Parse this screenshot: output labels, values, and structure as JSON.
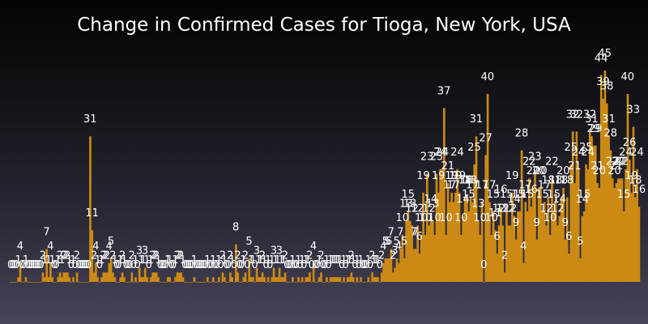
{
  "chart_data": {
    "type": "bar",
    "title": "Change in Confirmed Cases for Tioga, New York, USA",
    "xlabel": "",
    "ylabel": "",
    "ylim": [
      -1,
      45
    ],
    "grid": false,
    "legend": "none",
    "bar_color": "#cc8a14",
    "label_color": "#ffffff",
    "values": [
      0,
      0,
      0,
      0,
      1,
      4,
      0,
      0,
      1,
      0,
      0,
      0,
      0,
      0,
      0,
      0,
      0,
      2,
      1,
      7,
      1,
      4,
      1,
      0,
      0,
      1,
      2,
      1,
      2,
      2,
      2,
      1,
      0,
      1,
      0,
      2,
      0,
      0,
      0,
      0,
      0,
      0,
      31,
      11,
      2,
      4,
      1,
      0,
      1,
      2,
      2,
      2,
      4,
      5,
      2,
      1,
      0,
      0,
      1,
      2,
      1,
      0,
      0,
      0,
      2,
      0,
      1,
      0,
      3,
      1,
      1,
      3,
      1,
      0,
      1,
      2,
      2,
      2,
      1,
      0,
      0,
      0,
      0,
      1,
      1,
      0,
      0,
      1,
      2,
      2,
      2,
      1,
      0,
      0,
      0,
      0,
      0,
      1,
      0,
      0,
      0,
      0,
      0,
      0,
      1,
      0,
      0,
      1,
      0,
      0,
      1,
      0,
      2,
      1,
      0,
      0,
      2,
      1,
      0,
      8,
      2,
      0,
      0,
      1,
      2,
      0,
      5,
      1,
      1,
      0,
      3,
      1,
      1,
      2,
      1,
      0,
      1,
      0,
      1,
      3,
      1,
      1,
      3,
      1,
      1,
      2,
      0,
      0,
      0,
      1,
      0,
      0,
      1,
      0,
      1,
      0,
      1,
      1,
      2,
      0,
      4,
      0,
      0,
      1,
      2,
      0,
      0,
      1,
      0,
      1,
      1,
      1,
      1,
      1,
      1,
      0,
      1,
      0,
      1,
      1,
      2,
      1,
      0,
      1,
      0,
      1,
      0,
      0,
      0,
      1,
      0,
      2,
      1,
      1,
      1,
      0,
      2,
      4,
      5,
      5,
      5,
      7,
      2,
      3,
      5,
      4,
      7,
      10,
      5,
      13,
      15,
      13,
      12,
      7,
      7,
      12,
      6,
      10,
      19,
      10,
      23,
      12,
      14,
      13,
      10,
      23,
      19,
      24,
      24,
      37,
      10,
      21,
      17,
      19,
      17,
      19,
      24,
      19,
      10,
      14,
      18,
      18,
      15,
      18,
      17,
      25,
      31,
      13,
      10,
      17,
      0,
      27,
      40,
      17,
      10,
      15,
      11,
      6,
      12,
      16,
      12,
      2,
      15,
      12,
      12,
      19,
      14,
      9,
      15,
      15,
      28,
      4,
      17,
      15,
      22,
      16,
      20,
      23,
      9,
      20,
      20,
      15,
      17,
      12,
      18,
      10,
      22,
      15,
      18,
      12,
      14,
      18,
      20,
      9,
      18,
      6,
      25,
      32,
      21,
      32,
      24,
      5,
      14,
      15,
      25,
      24,
      32,
      31,
      29,
      29,
      21,
      20,
      44,
      39,
      45,
      38,
      31,
      28,
      22,
      20,
      21,
      22,
      22,
      22,
      15,
      24,
      40,
      26,
      19,
      33,
      18,
      24,
      16
    ]
  }
}
